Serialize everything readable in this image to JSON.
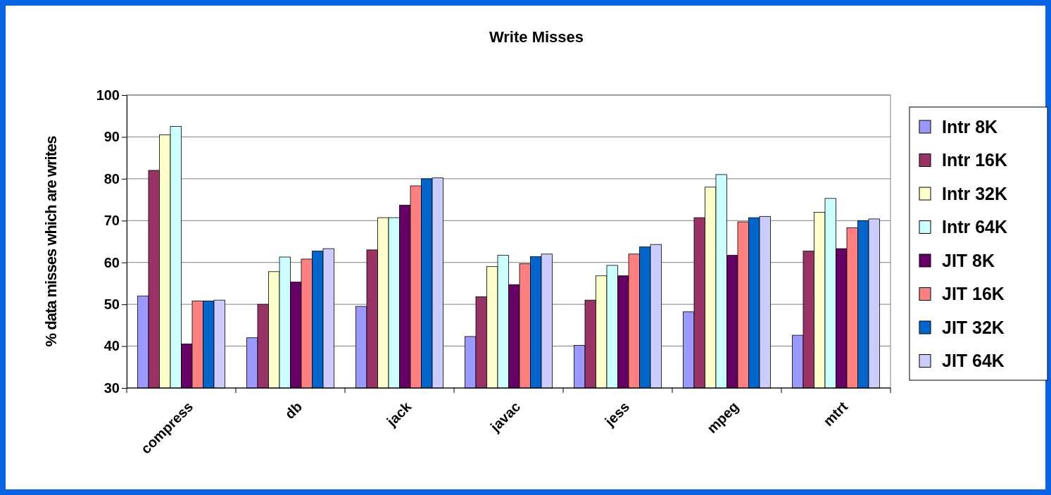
{
  "chart_data": {
    "type": "bar",
    "title": "Write Misses",
    "ylabel": "% data misses which are writes",
    "categories": [
      "compress",
      "db",
      "jack",
      "javac",
      "jess",
      "mpeg",
      "mtrt"
    ],
    "series": [
      {
        "name": "Intr 8K",
        "color": "#9999ff",
        "values": [
          52,
          42,
          49.5,
          42.3,
          40.2,
          48.2,
          42.6
        ]
      },
      {
        "name": "Intr 16K",
        "color": "#993366",
        "values": [
          82,
          50,
          63,
          51.8,
          51,
          70.7,
          62.7
        ]
      },
      {
        "name": "Intr 32K",
        "color": "#ffffcc",
        "values": [
          90.5,
          57.8,
          70.7,
          59,
          56.8,
          78,
          72
        ]
      },
      {
        "name": "Intr 64K",
        "color": "#ccffff",
        "values": [
          92.5,
          61.3,
          70.7,
          61.7,
          59.3,
          81,
          75.3
        ]
      },
      {
        "name": "JIT 8K",
        "color": "#660066",
        "values": [
          40.5,
          55.3,
          73.7,
          54.7,
          56.8,
          61.7,
          63.3
        ]
      },
      {
        "name": "JIT 16K",
        "color": "#ff8080",
        "values": [
          50.8,
          60.8,
          78.3,
          59.7,
          62,
          69.7,
          68.3
        ]
      },
      {
        "name": "JIT 32K",
        "color": "#0066cc",
        "values": [
          50.8,
          62.7,
          80,
          61.4,
          63.7,
          70.7,
          70
        ]
      },
      {
        "name": "JIT 64K",
        "color": "#ccccff",
        "values": [
          51,
          63.3,
          80.2,
          62,
          64.3,
          71,
          70.4
        ]
      }
    ],
    "ylim": [
      30,
      100
    ],
    "yticks": [
      30,
      40,
      50,
      60,
      70,
      80,
      90,
      100
    ],
    "grid": "y",
    "legend": "right"
  }
}
